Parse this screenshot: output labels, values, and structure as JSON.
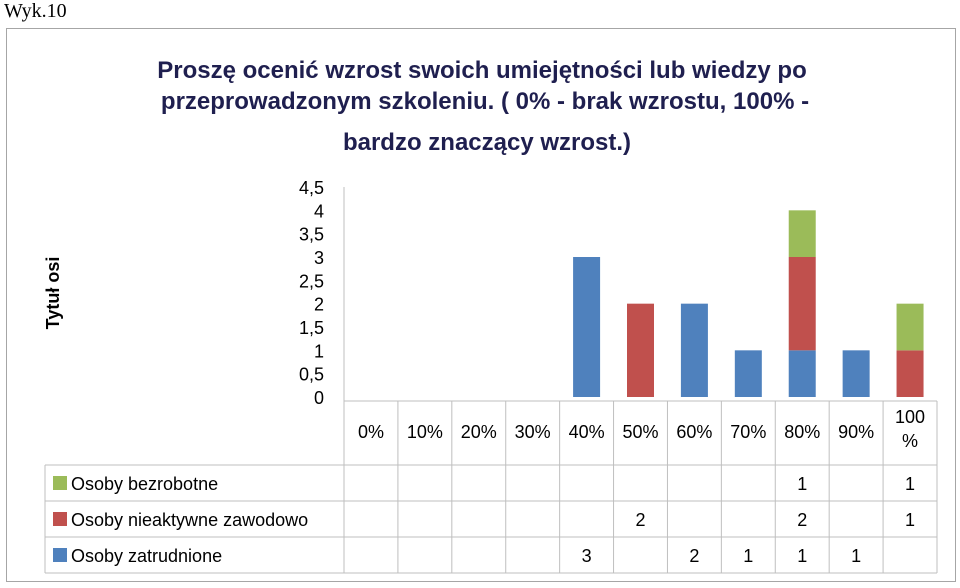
{
  "page_label": "Wyk.10",
  "chart_data": {
    "type": "bar",
    "stacked": true,
    "title_lines": [
      "Proszę ocenić wzrost swoich umiejętności lub wiedzy po",
      "przeprowadzonym szkoleniu. ( 0% - brak wzrostu, 100% -",
      "bardzo znaczący wzrost.)"
    ],
    "ylabel": "Tytuł osi",
    "categories": [
      "0%",
      "10%",
      "20%",
      "30%",
      "40%",
      "50%",
      "60%",
      "70%",
      "80%",
      "90%",
      "100 %"
    ],
    "y_ticks": [
      "0",
      "0,5",
      "1",
      "1,5",
      "2",
      "2,5",
      "3",
      "3,5",
      "4",
      "4,5"
    ],
    "ylim": [
      0,
      4.5
    ],
    "grid": false,
    "legend_placement": "data-table",
    "series": [
      {
        "name": "Osoby zatrudnione",
        "color": "#4f81bd",
        "values": [
          null,
          null,
          null,
          null,
          3,
          null,
          2,
          1,
          1,
          1,
          null
        ]
      },
      {
        "name": "Osoby nieaktywne zawodowo",
        "color": "#c0504d",
        "values": [
          null,
          null,
          null,
          null,
          null,
          2,
          null,
          null,
          2,
          null,
          1
        ]
      },
      {
        "name": "Osoby bezrobotne",
        "color": "#9bbb59",
        "values": [
          null,
          null,
          null,
          null,
          null,
          null,
          null,
          null,
          1,
          null,
          1
        ]
      }
    ],
    "table_order": [
      "Osoby bezrobotne",
      "Osoby nieaktywne zawodowo",
      "Osoby zatrudnione"
    ]
  }
}
